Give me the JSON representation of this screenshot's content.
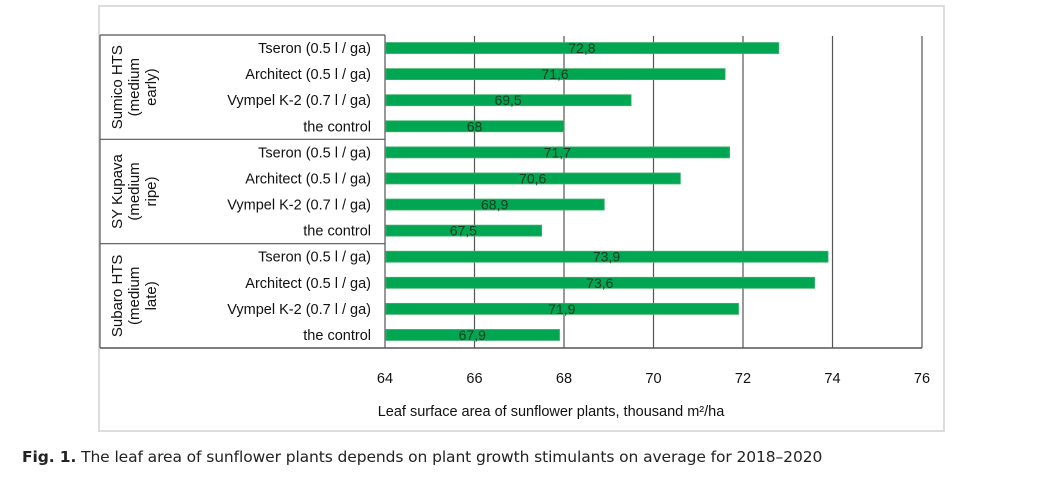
{
  "caption": {
    "prefix": "Fig. 1.",
    "text": " The leaf area of sunflower plants depends on plant growth stimulants on average for 2018–2020"
  },
  "colors": {
    "bar": "#00a651",
    "bar_edge": "#3cb36a",
    "grid": "#555555",
    "text": "#111111",
    "frame": "#dcdcdc"
  },
  "chart_data": {
    "type": "bar",
    "orientation": "horizontal",
    "title": "",
    "xlabel": "Leaf surface area of sunflower plants, thousand m²/ha",
    "ylabel": "",
    "xlim": [
      64,
      76
    ],
    "xticks": [
      "64",
      "66",
      "68",
      "70",
      "72",
      "74",
      "76"
    ],
    "grid": true,
    "legend": "none",
    "groups": [
      {
        "label_lines": [
          "Sumico HTS",
          "(medium",
          "early)"
        ],
        "categories": [
          "Tseron  (0.5 l / ga)",
          "Architect (0.5 l / ga)",
          "Vympel K-2 (0.7 l / ga)",
          "the control"
        ],
        "values": [
          72.8,
          71.6,
          69.5,
          68
        ],
        "data_labels": [
          "72,8",
          "71,6",
          "69,5",
          "68"
        ]
      },
      {
        "label_lines": [
          "SY Kupava",
          "(medium",
          "ripe)"
        ],
        "categories": [
          "Tseron  (0.5 l / ga)",
          "Architect (0.5 l / ga)",
          "Vympel K-2 (0.7 l / ga)",
          "the control"
        ],
        "values": [
          71.7,
          70.6,
          68.9,
          67.5
        ],
        "data_labels": [
          "71,7",
          "70,6",
          "68,9",
          "67,5"
        ]
      },
      {
        "label_lines": [
          "Subaro HTS",
          "(medium",
          "late)"
        ],
        "categories": [
          "Tseron  (0.5 l / ga)",
          "Architect (0.5 l / ga)",
          "Vympel K-2 (0.7 l / ga)",
          "the control"
        ],
        "values": [
          73.9,
          73.6,
          71.9,
          67.9
        ],
        "data_labels": [
          "73,9",
          "73,6",
          "71,9",
          "67,9"
        ]
      }
    ]
  }
}
